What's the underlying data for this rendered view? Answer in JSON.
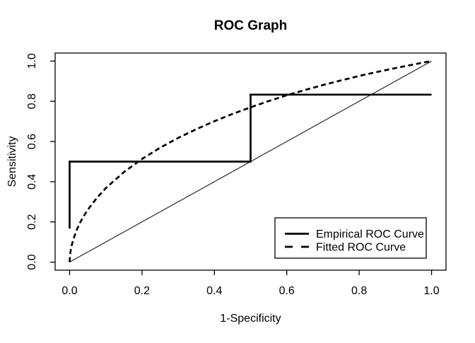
{
  "figure": {
    "background_color": "#ffffff",
    "foreground_color": "#000000"
  },
  "chart_data": {
    "type": "line",
    "title": "ROC Graph",
    "xlabel": "1-Specificity",
    "ylabel": "Sensitivity",
    "xlim": [
      0,
      1
    ],
    "ylim": [
      0,
      1
    ],
    "axis_padding_fraction": 0.04,
    "grid": false,
    "x_ticks": [
      "0.0",
      "0.2",
      "0.4",
      "0.6",
      "0.8",
      "1.0"
    ],
    "y_ticks": [
      "0.0",
      "0.2",
      "0.4",
      "0.6",
      "0.8",
      "1.0"
    ],
    "legend": {
      "position": "bottom-right",
      "entries": [
        {
          "label": "Empirical ROC Curve",
          "line_style": "solid"
        },
        {
          "label": "Fitted ROC Curve",
          "line_style": "dashed"
        }
      ]
    },
    "series": [
      {
        "name": "Empirical ROC Curve",
        "line": "solid",
        "points": [
          [
            0,
            0.1667
          ],
          [
            0,
            0.5
          ],
          [
            0.5,
            0.5
          ],
          [
            0.5,
            0.8333
          ],
          [
            1,
            0.8333
          ]
        ]
      },
      {
        "name": "Fitted ROC Curve",
        "line": "dashed",
        "model": "binormal TPR = Phi(0.74 + 0.84 * PhiInv(FPR))",
        "points": [
          [
            0,
            0
          ],
          [
            0.001,
            0.032
          ],
          [
            0.0025,
            0.053
          ],
          [
            0.005,
            0.077
          ],
          [
            0.01,
            0.112
          ],
          [
            0.02,
            0.162
          ],
          [
            0.03,
            0.2
          ],
          [
            0.04,
            0.232
          ],
          [
            0.05,
            0.26
          ],
          [
            0.075,
            0.319
          ],
          [
            0.1,
            0.368
          ],
          [
            0.15,
            0.448
          ],
          [
            0.2,
            0.513
          ],
          [
            0.25,
            0.569
          ],
          [
            0.3,
            0.618
          ],
          [
            0.35,
            0.661
          ],
          [
            0.4,
            0.701
          ],
          [
            0.45,
            0.737
          ],
          [
            0.5,
            0.77
          ],
          [
            0.55,
            0.801
          ],
          [
            0.6,
            0.83
          ],
          [
            0.65,
            0.856
          ],
          [
            0.7,
            0.881
          ],
          [
            0.75,
            0.904
          ],
          [
            0.8,
            0.926
          ],
          [
            0.85,
            0.946
          ],
          [
            0.9,
            0.965
          ],
          [
            0.95,
            0.983
          ],
          [
            0.975,
            0.992
          ],
          [
            1,
            1
          ]
        ]
      },
      {
        "name": "Chance diagonal reference line",
        "line": "thin-solid",
        "points": [
          [
            0,
            0
          ],
          [
            1,
            1
          ]
        ]
      }
    ]
  }
}
